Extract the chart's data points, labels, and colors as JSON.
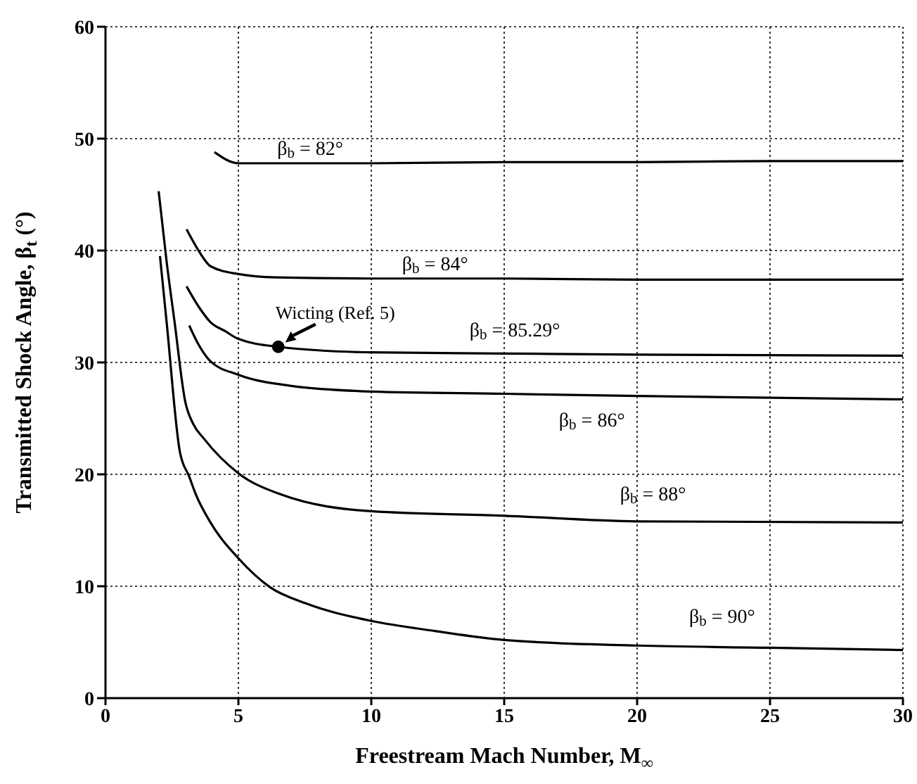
{
  "chart_data": {
    "type": "line",
    "xlabel": "Freestream Mach Number, M$_{∞}$",
    "ylabel": "Transmitted Shock Angle, β$_{t}$ (°)",
    "xlim": [
      0,
      30
    ],
    "xticks": [
      0,
      5,
      10,
      15,
      20,
      25,
      30
    ],
    "ylim": [
      0,
      60
    ],
    "yticks": [
      0,
      10,
      20,
      30,
      40,
      50,
      60
    ],
    "grid": true,
    "marker": "none",
    "line_style": "solid",
    "series": [
      {
        "name": "β$_{b}$ = 82°",
        "color": "#000000",
        "x": [
          4.1,
          5,
          7,
          10,
          15,
          20,
          25,
          30
        ],
        "values": [
          48.8,
          47.8,
          47.8,
          47.8,
          47.9,
          47.9,
          48,
          48
        ]
      },
      {
        "name": "β$_{b}$ = 84°",
        "color": "#000000",
        "x": [
          3.05,
          3.5,
          3.95,
          5,
          6.4,
          10,
          15,
          20,
          30
        ],
        "values": [
          41.9,
          40,
          38.6,
          37.9,
          37.6,
          37.5,
          37.5,
          37.4,
          37.4
        ]
      },
      {
        "name": "β$_{b}$ = 85.29°",
        "color": "#000000",
        "x": [
          3.05,
          3.5,
          3.95,
          4.5,
          5,
          6.5,
          10,
          15,
          20,
          30
        ],
        "values": [
          36.8,
          35,
          33.6,
          32.8,
          32.1,
          31.4,
          30.9,
          30.8,
          30.7,
          30.6
        ]
      },
      {
        "name": "β$_{b}$ = 86°",
        "color": "#000000",
        "x": [
          3.15,
          3.5,
          3.95,
          5,
          7,
          10,
          15,
          20,
          30
        ],
        "values": [
          33.3,
          31.6,
          30.1,
          28.9,
          27.9,
          27.4,
          27.2,
          27,
          26.7
        ]
      },
      {
        "name": "β$_{b}$ = 88°",
        "color": "#000000",
        "x": [
          2,
          2.3,
          2.6,
          3,
          3.3,
          3.7,
          5,
          6.6,
          10,
          15,
          20,
          30
        ],
        "values": [
          45.3,
          39,
          33.6,
          26.5,
          24.5,
          23.2,
          20.1,
          18.2,
          16.7,
          16.3,
          15.8,
          15.7
        ]
      },
      {
        "name": "β$_{b}$ = 90°",
        "color": "#000000",
        "x": [
          2.05,
          2.3,
          2.8,
          3.15,
          3.4,
          3.95,
          5,
          6.2,
          7.5,
          10,
          12.4,
          15,
          20,
          25,
          30
        ],
        "values": [
          39.5,
          33.6,
          22,
          19.8,
          18.2,
          15.7,
          12.5,
          9.9,
          8.5,
          6.9,
          6,
          5.2,
          4.7,
          4.5,
          4.3
        ]
      },
      {
        "type": "scatter",
        "marker": "circle",
        "color": "#000000",
        "x": [
          6.5
        ],
        "values": [
          31.4
        ]
      }
    ],
    "annotations": [
      {
        "text": "Wicting (Ref. 5)",
        "x": 6.5,
        "y": 31.4
      }
    ]
  }
}
